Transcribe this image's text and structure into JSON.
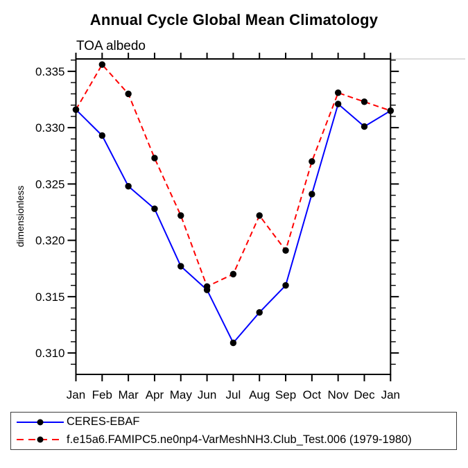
{
  "title": "Annual Cycle Global Mean Climatology",
  "subtitle": "TOA albedo",
  "ylabel": "dimensionless",
  "colors": {
    "obs_line": "#0000ff",
    "model_line": "#ff0000",
    "marker": "#000000",
    "axis": "#000000",
    "frame_artifact": "#c8c8c8",
    "legend_border": "#3c3c3c"
  },
  "legend": {
    "items": [
      {
        "label": "CERES-EBAF",
        "color": "#0000ff",
        "style": "solid"
      },
      {
        "label": "f.e15a6.FAMIPC5.ne0np4-VarMeshNH3.Club_Test.006 (1979-1980)",
        "color": "#ff0000",
        "style": "dashed"
      }
    ]
  },
  "chart_data": {
    "type": "line",
    "title": "Annual Cycle Global Mean Climatology",
    "subtitle": "TOA albedo",
    "xlabel": "",
    "ylabel": "dimensionless",
    "categories": [
      "Jan",
      "Feb",
      "Mar",
      "Apr",
      "May",
      "Jun",
      "Jul",
      "Aug",
      "Sep",
      "Oct",
      "Nov",
      "Dec",
      "Jan"
    ],
    "series": [
      {
        "name": "CERES-EBAF",
        "color": "#0000ff",
        "dash": "solid",
        "values": [
          0.3316,
          0.3293,
          0.3248,
          0.3228,
          0.3177,
          0.3156,
          0.3109,
          0.3136,
          0.316,
          0.3241,
          0.3321,
          0.3301,
          0.3315
        ]
      },
      {
        "name": "f.e15a6.FAMIPC5.ne0np4-VarMeshNH3.Club_Test.006 (1979-1980)",
        "color": "#ff0000",
        "dash": "dashed",
        "values": [
          0.3316,
          0.3356,
          0.333,
          0.3273,
          0.3222,
          0.3159,
          0.317,
          0.3222,
          0.3191,
          0.327,
          0.3331,
          0.3323,
          0.3315
        ]
      }
    ],
    "ylim": [
      0.3081,
      0.3361
    ],
    "ytick_major": [
      0.31,
      0.315,
      0.32,
      0.325,
      0.33,
      0.335
    ],
    "ytick_minor_step": 0.001,
    "marker": "filled-circle",
    "grid": false,
    "legend_position": "bottom"
  }
}
